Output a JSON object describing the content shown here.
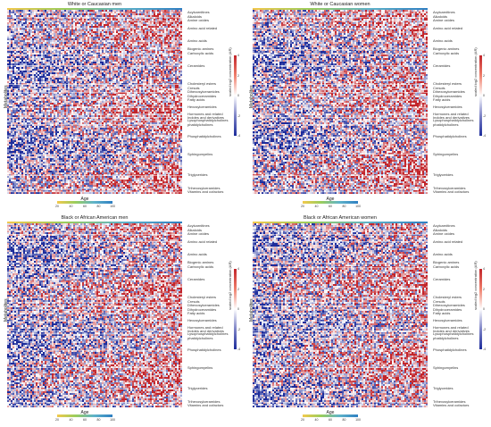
{
  "chart_data": [
    {
      "type": "heatmap",
      "title": "White or Caucasian men"
    },
    {
      "type": "heatmap",
      "title": "White or Caucasian women"
    },
    {
      "type": "heatmap",
      "title": "Black or African American men"
    },
    {
      "type": "heatmap",
      "title": "Black or African American women"
    }
  ],
  "shared": {
    "ylabel": "Metabolites",
    "age_title": "Age",
    "age_ticks": [
      "20",
      "40",
      "60",
      "80",
      "100"
    ],
    "age_colors": [
      "#f2c94c",
      "#9acd5c",
      "#5fb3c9",
      "#2e7fc2"
    ],
    "colorbar_title": "scaled log2 concentration (AR)",
    "colorbar_ticks": [
      "4",
      "2",
      "0",
      "-2",
      "-4"
    ],
    "colors": {
      "high": "#c2252b",
      "low": "#1d2c9b",
      "mid": "#ffffff"
    },
    "classes": [
      {
        "label": "Acylcarnitines",
        "frac": 0.015
      },
      {
        "label": "Alkaloids",
        "frac": 0.04
      },
      {
        "label": "Amine oxides",
        "frac": 0.06
      },
      {
        "label": "Amino acid related",
        "frac": 0.1
      },
      {
        "label": "Amino acids",
        "frac": 0.17
      },
      {
        "label": "Biogenic amines",
        "frac": 0.215
      },
      {
        "label": "Carboxylic acids",
        "frac": 0.24
      },
      {
        "label": "Ceramides",
        "frac": 0.305
      },
      {
        "label": "Cholesteryl esters",
        "frac": 0.405
      },
      {
        "label": "Cresols",
        "frac": 0.428
      },
      {
        "label": "Dihexosylceramides",
        "frac": 0.448
      },
      {
        "label": "Dihydroceramides",
        "frac": 0.47
      },
      {
        "label": "Fatty acids",
        "frac": 0.49
      },
      {
        "label": "Hexosylceramides",
        "frac": 0.53
      },
      {
        "label": "Hormones and related",
        "frac": 0.568
      },
      {
        "label": "Indoles and derivatives",
        "frac": 0.585
      },
      {
        "label": "Lysophosphatidylcholines",
        "frac": 0.602
      },
      {
        "label": "phatidylcholines",
        "frac": 0.625
      },
      {
        "label": "Phosphatidylcholines",
        "frac": 0.69
      },
      {
        "label": "Sphingomyelins",
        "frac": 0.785
      },
      {
        "label": "Triglycerides",
        "frac": 0.9
      },
      {
        "label": "Trihexosylceramides",
        "frac": 0.972
      },
      {
        "label": "Vitamins and cofactors",
        "frac": 0.99
      }
    ]
  }
}
